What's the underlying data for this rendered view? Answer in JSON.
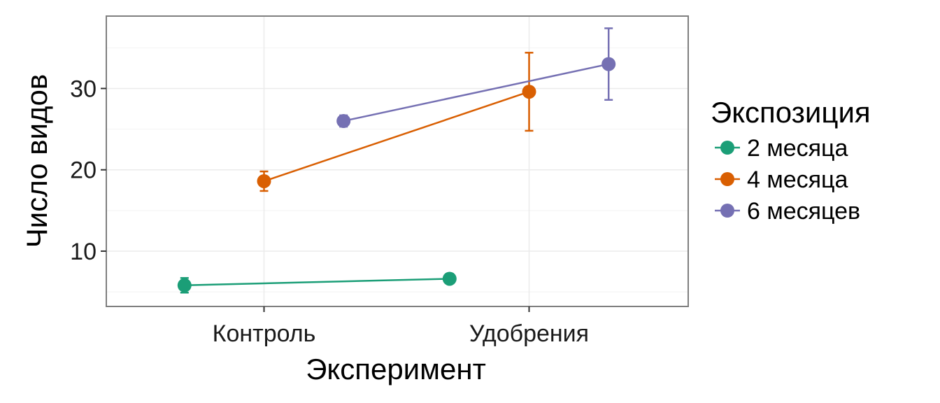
{
  "chart_data": {
    "type": "line",
    "title": "",
    "xlabel": "Эксперимент",
    "ylabel": "Число видов",
    "categories": [
      "Контроль",
      "Удобрения"
    ],
    "ylim": [
      3.2,
      38.9
    ],
    "yticks": [
      10,
      20,
      30
    ],
    "grid": true,
    "legend_title": "Экспозиция",
    "legend_position": "right",
    "series": [
      {
        "name": "2 месяца",
        "color": "#1b9e77",
        "dodge": -0.3,
        "values": [
          5.8,
          6.6
        ],
        "err_low": [
          4.9,
          6.1
        ],
        "err_high": [
          6.7,
          7.2
        ]
      },
      {
        "name": "4 месяца",
        "color": "#d95f02",
        "dodge": 0.0,
        "values": [
          18.6,
          29.6
        ],
        "err_low": [
          17.4,
          24.8
        ],
        "err_high": [
          19.8,
          34.4
        ]
      },
      {
        "name": "6 месяцев",
        "color": "#7570b3",
        "dodge": 0.3,
        "values": [
          26.0,
          33.0
        ],
        "err_low": [
          25.3,
          28.6
        ],
        "err_high": [
          26.7,
          37.4
        ]
      }
    ]
  }
}
